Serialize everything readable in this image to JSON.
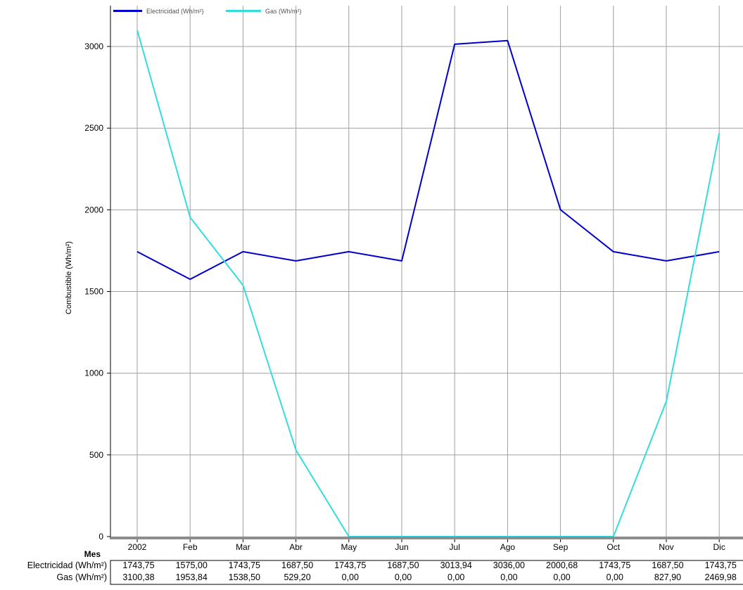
{
  "chart_data": {
    "type": "line",
    "ylabel": "Combustible (Wh/m²)",
    "xlabel": "Mes",
    "ylim": [
      0,
      3250
    ],
    "yticks": [
      0,
      500,
      1000,
      1500,
      2000,
      2500,
      3000
    ],
    "categories": [
      "2002",
      "Feb",
      "Mar",
      "Abr",
      "May",
      "Jun",
      "Jul",
      "Ago",
      "Sep",
      "Oct",
      "Nov",
      "Dic"
    ],
    "grid": true,
    "legend_position": "top-left",
    "series": [
      {
        "name": "Electricidad (Wh/m²)",
        "color": "#0000cc",
        "values": [
          1743.75,
          1575.0,
          1743.75,
          1687.5,
          1743.75,
          1687.5,
          3013.94,
          3036.0,
          2000.68,
          1743.75,
          1687.5,
          1743.75
        ]
      },
      {
        "name": "Gas (Wh/m²)",
        "color": "#33dddd",
        "values": [
          3100.38,
          1953.84,
          1538.5,
          529.2,
          0.0,
          0.0,
          0.0,
          0.0,
          0.0,
          0.0,
          827.9,
          2469.98
        ]
      }
    ],
    "table": {
      "rows": [
        {
          "label": "Electricidad (Wh/m²)",
          "cells": [
            "1743,75",
            "1575,00",
            "1743,75",
            "1687,50",
            "1743,75",
            "1687,50",
            "3013,94",
            "3036,00",
            "2000,68",
            "1743,75",
            "1687,50",
            "1743,75"
          ]
        },
        {
          "label": "Gas (Wh/m²)",
          "cells": [
            "3100,38",
            "1953,84",
            "1538,50",
            "529,20",
            "0,00",
            "0,00",
            "0,00",
            "0,00",
            "0,00",
            "0,00",
            "827,90",
            "2469,98"
          ]
        }
      ]
    }
  }
}
